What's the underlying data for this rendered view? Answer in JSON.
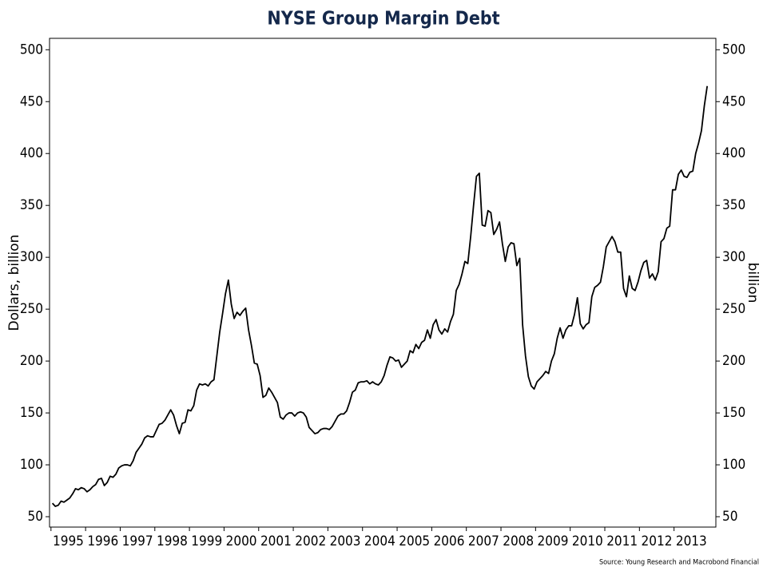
{
  "chart_data": {
    "type": "line",
    "title": "NYSE Group Margin Debt",
    "y_label": "Dollars, billion",
    "y2_label": "billion",
    "source": "Source: Young Research and Macrobond Financial",
    "color": "#000000",
    "x": [
      "1995-01",
      "1995-02",
      "1995-03",
      "1995-04",
      "1995-05",
      "1995-06",
      "1995-07",
      "1995-08",
      "1995-09",
      "1995-10",
      "1995-11",
      "1995-12",
      "1996-01",
      "1996-02",
      "1996-03",
      "1996-04",
      "1996-05",
      "1996-06",
      "1996-07",
      "1996-08",
      "1996-09",
      "1996-10",
      "1996-11",
      "1996-12",
      "1997-01",
      "1997-02",
      "1997-03",
      "1997-04",
      "1997-05",
      "1997-06",
      "1997-07",
      "1997-08",
      "1997-09",
      "1997-10",
      "1997-11",
      "1997-12",
      "1998-01",
      "1998-02",
      "1998-03",
      "1998-04",
      "1998-05",
      "1998-06",
      "1998-07",
      "1998-08",
      "1998-09",
      "1998-10",
      "1998-11",
      "1998-12",
      "1999-01",
      "1999-02",
      "1999-03",
      "1999-04",
      "1999-05",
      "1999-06",
      "1999-07",
      "1999-08",
      "1999-09",
      "1999-10",
      "1999-11",
      "1999-12",
      "2000-01",
      "2000-02",
      "2000-03",
      "2000-04",
      "2000-05",
      "2000-06",
      "2000-07",
      "2000-08",
      "2000-09",
      "2000-10",
      "2000-11",
      "2000-12",
      "2001-01",
      "2001-02",
      "2001-03",
      "2001-04",
      "2001-05",
      "2001-06",
      "2001-07",
      "2001-08",
      "2001-09",
      "2001-10",
      "2001-11",
      "2001-12",
      "2002-01",
      "2002-02",
      "2002-03",
      "2002-04",
      "2002-05",
      "2002-06",
      "2002-07",
      "2002-08",
      "2002-09",
      "2002-10",
      "2002-11",
      "2002-12",
      "2003-01",
      "2003-02",
      "2003-03",
      "2003-04",
      "2003-05",
      "2003-06",
      "2003-07",
      "2003-08",
      "2003-09",
      "2003-10",
      "2003-11",
      "2003-12",
      "2004-01",
      "2004-02",
      "2004-03",
      "2004-04",
      "2004-05",
      "2004-06",
      "2004-07",
      "2004-08",
      "2004-09",
      "2004-10",
      "2004-11",
      "2004-12",
      "2005-01",
      "2005-02",
      "2005-03",
      "2005-04",
      "2005-05",
      "2005-06",
      "2005-07",
      "2005-08",
      "2005-09",
      "2005-10",
      "2005-11",
      "2005-12",
      "2006-01",
      "2006-02",
      "2006-03",
      "2006-04",
      "2006-05",
      "2006-06",
      "2006-07",
      "2006-08",
      "2006-09",
      "2006-10",
      "2006-11",
      "2006-12",
      "2007-01",
      "2007-02",
      "2007-03",
      "2007-04",
      "2007-05",
      "2007-06",
      "2007-07",
      "2007-08",
      "2007-09",
      "2007-10",
      "2007-11",
      "2007-12",
      "2008-01",
      "2008-02",
      "2008-03",
      "2008-04",
      "2008-05",
      "2008-06",
      "2008-07",
      "2008-08",
      "2008-09",
      "2008-10",
      "2008-11",
      "2008-12",
      "2009-01",
      "2009-02",
      "2009-03",
      "2009-04",
      "2009-05",
      "2009-06",
      "2009-07",
      "2009-08",
      "2009-09",
      "2009-10",
      "2009-11",
      "2009-12",
      "2010-01",
      "2010-02",
      "2010-03",
      "2010-04",
      "2010-05",
      "2010-06",
      "2010-07",
      "2010-08",
      "2010-09",
      "2010-10",
      "2010-11",
      "2010-12",
      "2011-01",
      "2011-02",
      "2011-03",
      "2011-04",
      "2011-05",
      "2011-06",
      "2011-07",
      "2011-08",
      "2011-09",
      "2011-10",
      "2011-11",
      "2011-12",
      "2012-01",
      "2012-02",
      "2012-03",
      "2012-04",
      "2012-05",
      "2012-06",
      "2012-07",
      "2012-08",
      "2012-09",
      "2012-10",
      "2012-11",
      "2012-12",
      "2013-01",
      "2013-02",
      "2013-03",
      "2013-04",
      "2013-05",
      "2013-06",
      "2013-07",
      "2013-08",
      "2013-09",
      "2013-10",
      "2013-11",
      "2013-12"
    ],
    "values": [
      63,
      60,
      61,
      65,
      64,
      66,
      68,
      72,
      77,
      76,
      78,
      77,
      74,
      76,
      79,
      81,
      86,
      87,
      80,
      83,
      89,
      88,
      91,
      97,
      99,
      100,
      100,
      99,
      104,
      112,
      116,
      120,
      126,
      128,
      127,
      127,
      133,
      139,
      140,
      143,
      148,
      153,
      148,
      138,
      130,
      140,
      141,
      153,
      152,
      157,
      172,
      178,
      177,
      178,
      176,
      180,
      182,
      205,
      228,
      246,
      265,
      278,
      255,
      241,
      247,
      244,
      248,
      251,
      230,
      215,
      198,
      197,
      186,
      165,
      167,
      174,
      170,
      165,
      160,
      146,
      144,
      148,
      150,
      150,
      147,
      150,
      151,
      150,
      146,
      136,
      133,
      130,
      131,
      134,
      135,
      135,
      134,
      137,
      142,
      147,
      149,
      149,
      152,
      160,
      170,
      172,
      179,
      180,
      180,
      181,
      178,
      180,
      178,
      177,
      180,
      186,
      196,
      204,
      203,
      200,
      201,
      194,
      197,
      200,
      210,
      208,
      216,
      212,
      218,
      220,
      230,
      222,
      235,
      240,
      230,
      226,
      231,
      228,
      238,
      245,
      268,
      274,
      284,
      296,
      294,
      320,
      350,
      378,
      381,
      331,
      330,
      345,
      343,
      322,
      327,
      334,
      313,
      296,
      310,
      314,
      313,
      292,
      299,
      235,
      205,
      185,
      176,
      173,
      180,
      183,
      186,
      190,
      188,
      200,
      207,
      222,
      232,
      222,
      230,
      234,
      234,
      245,
      261,
      236,
      231,
      235,
      237,
      262,
      271,
      273,
      276,
      291,
      310,
      315,
      320,
      315,
      305,
      305,
      270,
      262,
      282,
      270,
      268,
      276,
      287,
      295,
      297,
      280,
      284,
      278,
      286,
      315,
      318,
      328,
      330,
      365,
      365,
      380,
      384,
      378,
      377,
      382,
      383,
      400,
      410,
      422,
      446,
      465
    ],
    "xlim": [
      "1994-12",
      "2014-03"
    ],
    "xticks": [
      1995,
      1996,
      1997,
      1998,
      1999,
      2000,
      2001,
      2002,
      2003,
      2004,
      2005,
      2006,
      2007,
      2008,
      2009,
      2010,
      2011,
      2012,
      2013
    ],
    "ylim": [
      40,
      511
    ],
    "yticks": [
      50,
      100,
      150,
      200,
      250,
      300,
      350,
      400,
      450,
      500
    ],
    "y2lim": [
      40,
      511
    ],
    "y2ticks": [
      50,
      100,
      150,
      200,
      250,
      300,
      350,
      400,
      450,
      500
    ]
  }
}
